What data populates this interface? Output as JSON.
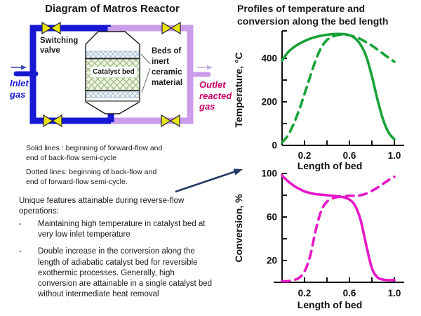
{
  "left": {
    "title": "Diagram of Matros Reactor",
    "labels": {
      "switching_valve": "Switching valve",
      "beds_inert": "Beds of inert ceramic material",
      "catalyst_bed": "Catalyst bed",
      "inlet_gas": "Inlet gas",
      "outlet_gas": "Outlet reacted gas"
    }
  },
  "right": {
    "title": "Profiles of temperature and conversion along the bed length"
  },
  "notes": {
    "solid": "Solid lines : beginning of forward-flow and end of back-flow semi-cycle",
    "dotted": "Dotted lines: beginning of back-flow and end of forward-flow semi-cycle."
  },
  "features": {
    "heading": "Unique features attainable during reverse-flow operations:",
    "bullet_glyph": "-",
    "items": [
      {
        "text": "Maintaining high temperature in catalyst bed at very  low inlet temperature"
      },
      {
        "text": "Double increase in the conversion along the length of adiabatic catalyst bed for reversible exothermic processes. Generally, high conversion are attainable in a single catalyst bed without intermediate heat removal"
      }
    ]
  },
  "colors": {
    "pipe_blue": "#1717d4",
    "pipe_lavender": "#cb9ce9",
    "valve_yellow": "#e8e312",
    "outlet_red": "#cc0066",
    "arrow_navy": "#1f3864",
    "green_curve": "#18a237",
    "magenta_curve": "#e518c8"
  },
  "chart_data": [
    {
      "id": "temperature-profile",
      "type": "line",
      "xlabel": "Length of bed",
      "ylabel": "Temperature, °C",
      "xlim": [
        0,
        1.05
      ],
      "ylim": [
        0,
        525
      ],
      "xticks": [
        0.2,
        0.4,
        0.6,
        0.8,
        1.0
      ],
      "xtick_labels": [
        "0.2",
        "",
        "0.6",
        "",
        "1.0"
      ],
      "yticks": [
        0,
        100,
        200,
        300,
        400
      ],
      "ytick_labels": [
        "0",
        "",
        "200",
        "",
        "400"
      ],
      "grid": false,
      "legend": "solid = beginning of forward-flow / end of back-flow semi-cycle; dashed = beginning of back-flow / end of forward-flow semi-cycle",
      "series": [
        {
          "name": "beginning of forward-flow (solid)",
          "style": "solid",
          "color": "#18a237",
          "x": [
            0,
            0.05,
            0.1,
            0.15,
            0.2,
            0.25,
            0.3,
            0.35,
            0.4,
            0.45,
            0.5,
            0.55,
            0.6,
            0.65,
            0.7,
            0.75,
            0.8,
            0.85,
            0.9,
            0.95,
            1.0
          ],
          "y": [
            390,
            426,
            449,
            466,
            479,
            490,
            498,
            504,
            508,
            511,
            512,
            511,
            506,
            492,
            462,
            408,
            318,
            210,
            118,
            58,
            28
          ]
        },
        {
          "name": "beginning of back-flow (dashed)",
          "style": "dashed",
          "color": "#18a237",
          "x": [
            0,
            0.05,
            0.1,
            0.15,
            0.2,
            0.25,
            0.3,
            0.35,
            0.4,
            0.45,
            0.5,
            0.55,
            0.6,
            0.65,
            0.7,
            0.75,
            0.8,
            0.85,
            0.9,
            0.95,
            1.0
          ],
          "y": [
            14,
            44,
            95,
            160,
            236,
            316,
            392,
            450,
            484,
            500,
            507,
            509,
            505,
            498,
            488,
            474,
            458,
            440,
            421,
            402,
            384
          ]
        }
      ]
    },
    {
      "id": "conversion-profile",
      "type": "line",
      "xlabel": "Length of bed",
      "ylabel": "Conversion, %",
      "xlim": [
        0,
        1.05
      ],
      "ylim": [
        0,
        100
      ],
      "xticks": [
        0.2,
        0.4,
        0.6,
        0.8,
        1.0
      ],
      "xtick_labels": [
        "0.2",
        "",
        "0.6",
        "",
        "1.0"
      ],
      "yticks": [
        20,
        40,
        60,
        80,
        100
      ],
      "ytick_labels": [
        "20",
        "",
        "60",
        "",
        "100"
      ],
      "grid": false,
      "legend": "solid = beginning of forward-flow / end of back-flow semi-cycle; dashed = beginning of back-flow / end of forward-flow semi-cycle",
      "series": [
        {
          "name": "beginning of forward-flow (solid)",
          "style": "solid",
          "color": "#e518c8",
          "x": [
            0,
            0.05,
            0.1,
            0.15,
            0.2,
            0.25,
            0.3,
            0.35,
            0.4,
            0.45,
            0.5,
            0.55,
            0.6,
            0.65,
            0.7,
            0.75,
            0.8,
            0.85,
            0.9,
            0.95,
            1.0
          ],
          "y": [
            98,
            93,
            89,
            86,
            83.5,
            82,
            81,
            80.5,
            80,
            79.5,
            79,
            78,
            76,
            70.5,
            57,
            34,
            13,
            4.5,
            2.5,
            2,
            2
          ]
        },
        {
          "name": "beginning of back-flow (dashed)",
          "style": "dashed",
          "color": "#e518c8",
          "x": [
            0,
            0.05,
            0.1,
            0.15,
            0.2,
            0.25,
            0.3,
            0.35,
            0.4,
            0.45,
            0.5,
            0.55,
            0.6,
            0.65,
            0.7,
            0.75,
            0.8,
            0.85,
            0.9,
            0.95,
            1.0
          ],
          "y": [
            1,
            1,
            2,
            4,
            10,
            24,
            48,
            66,
            74,
            77,
            78.5,
            79,
            79.5,
            79.5,
            80,
            81.5,
            84,
            87,
            90.5,
            94,
            97
          ]
        }
      ]
    }
  ]
}
